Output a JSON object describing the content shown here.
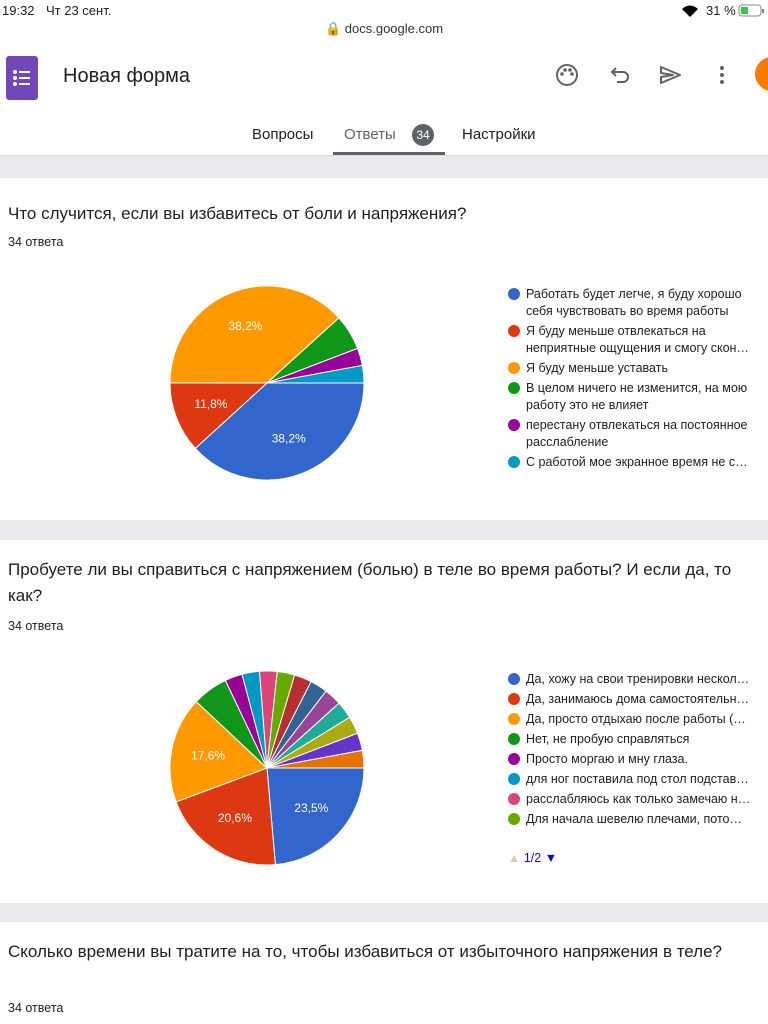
{
  "status_bar": {
    "time": "19:32",
    "date": "Чт 23 сент.",
    "url": "docs.google.com",
    "battery": "31 %"
  },
  "header": {
    "title": "Новая форма"
  },
  "tabs": {
    "questions": "Вопросы",
    "responses": "Ответы",
    "responses_count": "34",
    "settings": "Настройки"
  },
  "questions": [
    {
      "title": "Что случится, если вы избавитесь от боли и напряжения?",
      "responses": "34 ответа",
      "chart_data": {
        "type": "pie",
        "categories": [
          "Работать будет легче, я буду хорошо себя чувствовать во время работы",
          "Я буду меньше отвлекаться на неприятные ощущения и смогу скон…",
          "Я буду меньше уставать",
          "В целом ничего не изменится, на мою работу это не влияет",
          "перестану отвлекаться на постоянное расслабление",
          "С работой мое экранное время не с…"
        ],
        "values": [
          38.2,
          11.8,
          38.2,
          5.9,
          2.9,
          2.9
        ],
        "value_labels": [
          "38,2%",
          "11,8%",
          "38,2%",
          null,
          null,
          null
        ],
        "colors": [
          "#3366cc",
          "#dc3912",
          "#ff9900",
          "#109618",
          "#990099",
          "#0099c6"
        ]
      }
    },
    {
      "title": "Пробуете ли вы справиться с напряжением (болью) в теле во время работы? И если да, то как?",
      "responses": "34 ответа",
      "legend_page": "1/2",
      "chart_data": {
        "type": "pie",
        "categories": [
          "Да, хожу на свои тренировки нескол…",
          "Да, занимаюсь дома самостоятельн…",
          "Да, просто отдыхаю после работы (…",
          "Нет, не пробую справляться",
          "Просто моргаю и мну глаза.",
          "для ног поставила под стол подстав…",
          "расслабляюсь как только замечаю н…",
          "Для начала шевелю плечами, пото…",
          null,
          null,
          null,
          null,
          null,
          null,
          null
        ],
        "values": [
          23.5,
          20.6,
          17.6,
          5.9,
          2.9,
          2.9,
          2.9,
          2.9,
          2.9,
          2.9,
          2.9,
          2.9,
          2.9,
          2.9,
          2.9
        ],
        "value_labels": [
          "23,5%",
          "20,6%",
          "17,6%",
          null,
          null,
          null,
          null,
          null,
          null,
          null,
          null,
          null,
          null,
          null,
          null
        ],
        "colors": [
          "#3366cc",
          "#dc3912",
          "#ff9900",
          "#109618",
          "#990099",
          "#0099c6",
          "#dd4477",
          "#66aa00",
          "#b82e2e",
          "#316395",
          "#994499",
          "#22aa99",
          "#aaaa11",
          "#6633cc",
          "#e67300"
        ]
      }
    },
    {
      "title": "Сколько времени вы тратите на то, чтобы избавиться от избыточного напряжения в теле?",
      "responses": "34 ответа"
    }
  ]
}
